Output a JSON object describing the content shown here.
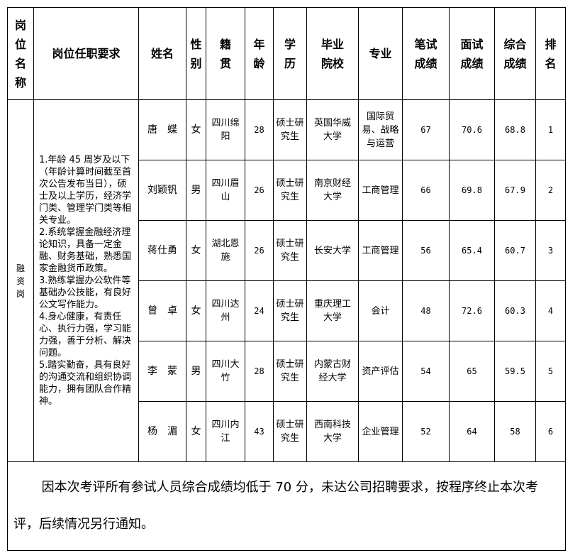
{
  "headers": {
    "position": "岗位名称",
    "requirements": "岗位任职要求",
    "name": "姓名",
    "gender": "性别",
    "origin": "籍贯",
    "age": "年龄",
    "education": "学历",
    "school": "毕业院校",
    "major": "专业",
    "written": "笔试成绩",
    "interview": "面试成绩",
    "total": "综合成绩",
    "rank": "排名"
  },
  "position": "融资岗",
  "requirements": "1.年龄 45 周岁及以下（年龄计算时间截至首次公告发布当日），硕士及以上学历，经济学门类、管理学门类等相关专业。\n2.系统掌握金融经济理论知识，具备一定金融、财务基础，熟悉国家金融货币政策。\n3.熟练掌握办公软件等基础办公技能，有良好公文写作能力。\n4.身心健康，有责任心、执行力强，学习能力强，善于分析、解决问题。\n5.踏实勤奋，具有良好的沟通交流和组织协调能力，拥有团队合作精神。",
  "rows": [
    {
      "name": "唐　蝶",
      "gender": "女",
      "origin": "四川绵阳",
      "age": "28",
      "education": "硕士研究生",
      "school": "英国华威大学",
      "major": "国际贸易、战略与运营",
      "written": "67",
      "interview": "70.6",
      "total": "68.8",
      "rank": "1"
    },
    {
      "name": "刘颖钒",
      "gender": "男",
      "origin": "四川眉山",
      "age": "26",
      "education": "硕士研究生",
      "school": "南京财经大学",
      "major": "工商管理",
      "written": "66",
      "interview": "69.8",
      "total": "67.9",
      "rank": "2"
    },
    {
      "name": "蒋仕勇",
      "gender": "女",
      "origin": "湖北恩施",
      "age": "26",
      "education": "硕士研究生",
      "school": "长安大学",
      "major": "工商管理",
      "written": "56",
      "interview": "65.4",
      "total": "60.7",
      "rank": "3"
    },
    {
      "name": "曾　卓",
      "gender": "女",
      "origin": "四川达州",
      "age": "24",
      "education": "硕士研究生",
      "school": "重庆理工大学",
      "major": "会计",
      "written": "48",
      "interview": "72.6",
      "total": "60.3",
      "rank": "4"
    },
    {
      "name": "李　蒙",
      "gender": "男",
      "origin": "四川大竹",
      "age": "28",
      "education": "硕士研究生",
      "school": "内蒙古财经大学",
      "major": "资产评估",
      "written": "54",
      "interview": "65",
      "total": "59.5",
      "rank": "5"
    },
    {
      "name": "杨　湄",
      "gender": "女",
      "origin": "四川内江",
      "age": "43",
      "education": "硕士研究生",
      "school": "西南科技大学",
      "major": "企业管理",
      "written": "52",
      "interview": "64",
      "total": "58",
      "rank": "6"
    }
  ],
  "footer": "因本次考评所有参试人员综合成绩均低于 70 分，未达公司招聘要求，按程序终止本次考评，后续情况另行通知。"
}
